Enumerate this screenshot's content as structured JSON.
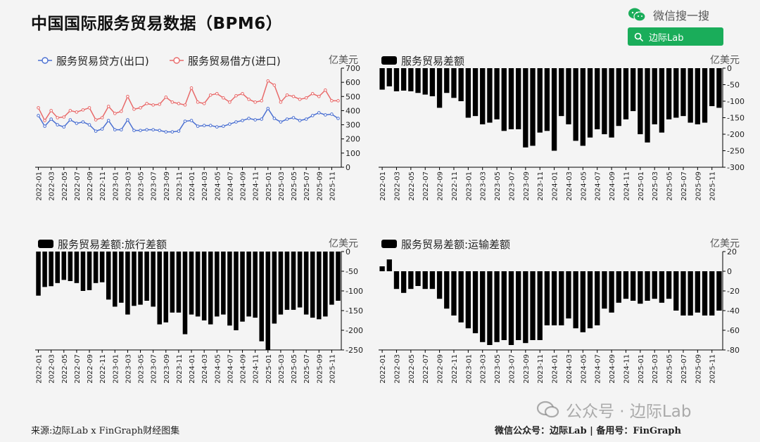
{
  "page": {
    "title": "中国国际服务贸易数据（BPM6）",
    "wechat_label": "微信搜一搜",
    "search_label": "边际Lab",
    "watermark": "公众号 · 边际Lab",
    "footer_left": "来源:边际Lab x FinGraph财经图集",
    "footer_right": "微信公众号：边际Lab  |  备用号：FinGraph"
  },
  "colors": {
    "export": "#4a6fd1",
    "import": "#e86a6a",
    "bar": "#000000",
    "brand_green": "#1aad5a"
  },
  "chart_data": [
    {
      "type": "line",
      "unit": "亿美元",
      "ylim": [
        0,
        700
      ],
      "yticks": [
        0,
        100,
        200,
        300,
        400,
        500,
        600,
        700
      ],
      "grid": false,
      "legend": "top-left",
      "xtick_labels": [
        "2022-01",
        "2022-03",
        "2022-05",
        "2022-07",
        "2022-09",
        "2022-11",
        "2023-01",
        "2023-03",
        "2023-05",
        "2023-07",
        "2023-09",
        "2023-11",
        "2024-01",
        "2024-03",
        "2024-05",
        "2024-07",
        "2024-09",
        "2024-11",
        "2025-01",
        "2025-03",
        "2025-05",
        "2025-07",
        "2025-09",
        "2025-11"
      ],
      "series": [
        {
          "name": "服务贸易贷方(出口)",
          "values": [
            365,
            290,
            340,
            300,
            285,
            335,
            310,
            320,
            300,
            255,
            270,
            330,
            265,
            265,
            335,
            260,
            260,
            265,
            265,
            260,
            250,
            250,
            255,
            325,
            330,
            290,
            295,
            295,
            285,
            290,
            305,
            320,
            330,
            345,
            335,
            340,
            415,
            345,
            320,
            340,
            350,
            330,
            340,
            365,
            385,
            370,
            375,
            345
          ]
        },
        {
          "name": "服务贸易借方(进口)",
          "values": [
            420,
            330,
            400,
            350,
            355,
            400,
            390,
            405,
            420,
            335,
            350,
            430,
            380,
            395,
            500,
            410,
            420,
            450,
            440,
            445,
            495,
            460,
            450,
            440,
            560,
            460,
            450,
            510,
            520,
            490,
            460,
            505,
            520,
            480,
            460,
            470,
            610,
            580,
            460,
            510,
            500,
            480,
            490,
            520,
            500,
            545,
            470,
            470
          ]
        }
      ]
    },
    {
      "type": "bar",
      "title": "服务贸易差额",
      "unit": "亿美元",
      "ylim": [
        -300,
        0
      ],
      "yticks": [
        0,
        -50,
        -100,
        -150,
        -200,
        -250,
        -300
      ],
      "grid": false,
      "xtick_labels": [
        "2022-01",
        "2022-03",
        "2022-05",
        "2022-07",
        "2022-09",
        "2022-11",
        "2023-01",
        "2023-03",
        "2023-05",
        "2023-07",
        "2023-09",
        "2023-11",
        "2024-01",
        "2024-03",
        "2024-05",
        "2024-07",
        "2024-09",
        "2024-11",
        "2025-01",
        "2025-03",
        "2025-05",
        "2025-07",
        "2025-09",
        "2025-11"
      ],
      "values": [
        -65,
        -55,
        -70,
        -68,
        -70,
        -75,
        -80,
        -85,
        -120,
        -75,
        -90,
        -100,
        -150,
        -145,
        -170,
        -165,
        -155,
        -190,
        -185,
        -185,
        -240,
        -235,
        -195,
        -190,
        -250,
        -145,
        -170,
        -220,
        -235,
        -210,
        -185,
        -200,
        -210,
        -175,
        -155,
        -130,
        -200,
        -225,
        -170,
        -195,
        -155,
        -150,
        -145,
        -165,
        -170,
        -165,
        -115,
        -120
      ]
    },
    {
      "type": "bar",
      "title": "服务贸易差额:旅行差额",
      "unit": "亿美元",
      "ylim": [
        -250,
        0
      ],
      "yticks": [
        0,
        -50,
        -100,
        -150,
        -200,
        -250
      ],
      "grid": false,
      "xtick_labels": [
        "2022-01",
        "2022-03",
        "2022-05",
        "2022-07",
        "2022-09",
        "2022-11",
        "2023-01",
        "2023-03",
        "2023-05",
        "2023-07",
        "2023-09",
        "2023-11",
        "2024-01",
        "2024-03",
        "2024-05",
        "2024-07",
        "2024-09",
        "2024-11",
        "2025-01",
        "2025-03",
        "2025-05",
        "2025-07",
        "2025-09",
        "2025-11"
      ],
      "values": [
        -112,
        -90,
        -88,
        -80,
        -72,
        -75,
        -80,
        -100,
        -98,
        -80,
        -78,
        -122,
        -140,
        -130,
        -160,
        -138,
        -135,
        -125,
        -140,
        -185,
        -180,
        -155,
        -155,
        -210,
        -160,
        -165,
        -175,
        -185,
        -165,
        -160,
        -188,
        -200,
        -178,
        -165,
        -168,
        -228,
        -250,
        -183,
        -160,
        -148,
        -148,
        -142,
        -160,
        -168,
        -172,
        -165,
        -135,
        -125
      ]
    },
    {
      "type": "bar",
      "title": "服务贸易差额:运输差额",
      "unit": "亿美元",
      "ylim": [
        -80,
        20
      ],
      "yticks": [
        20,
        0,
        -20,
        -40,
        -60,
        -80
      ],
      "grid": false,
      "xtick_labels": [
        "2022-01",
        "2022-03",
        "2022-05",
        "2022-07",
        "2022-09",
        "2022-11",
        "2023-01",
        "2023-03",
        "2023-05",
        "2023-07",
        "2023-09",
        "2023-11",
        "2024-01",
        "2024-03",
        "2024-05",
        "2024-07",
        "2024-09",
        "2024-11",
        "2025-01",
        "2025-03",
        "2025-05",
        "2025-07",
        "2025-09",
        "2025-11"
      ],
      "values": [
        5,
        12,
        -18,
        -22,
        -18,
        -15,
        -18,
        -18,
        -28,
        -38,
        -45,
        -52,
        -58,
        -63,
        -72,
        -75,
        -72,
        -70,
        -75,
        -70,
        -73,
        -70,
        -70,
        -55,
        -55,
        -55,
        -48,
        -58,
        -62,
        -58,
        -55,
        -38,
        -42,
        -32,
        -28,
        -30,
        -33,
        -30,
        -28,
        -32,
        -28,
        -40,
        -45,
        -45,
        -42,
        -45,
        -45,
        -40
      ]
    }
  ]
}
